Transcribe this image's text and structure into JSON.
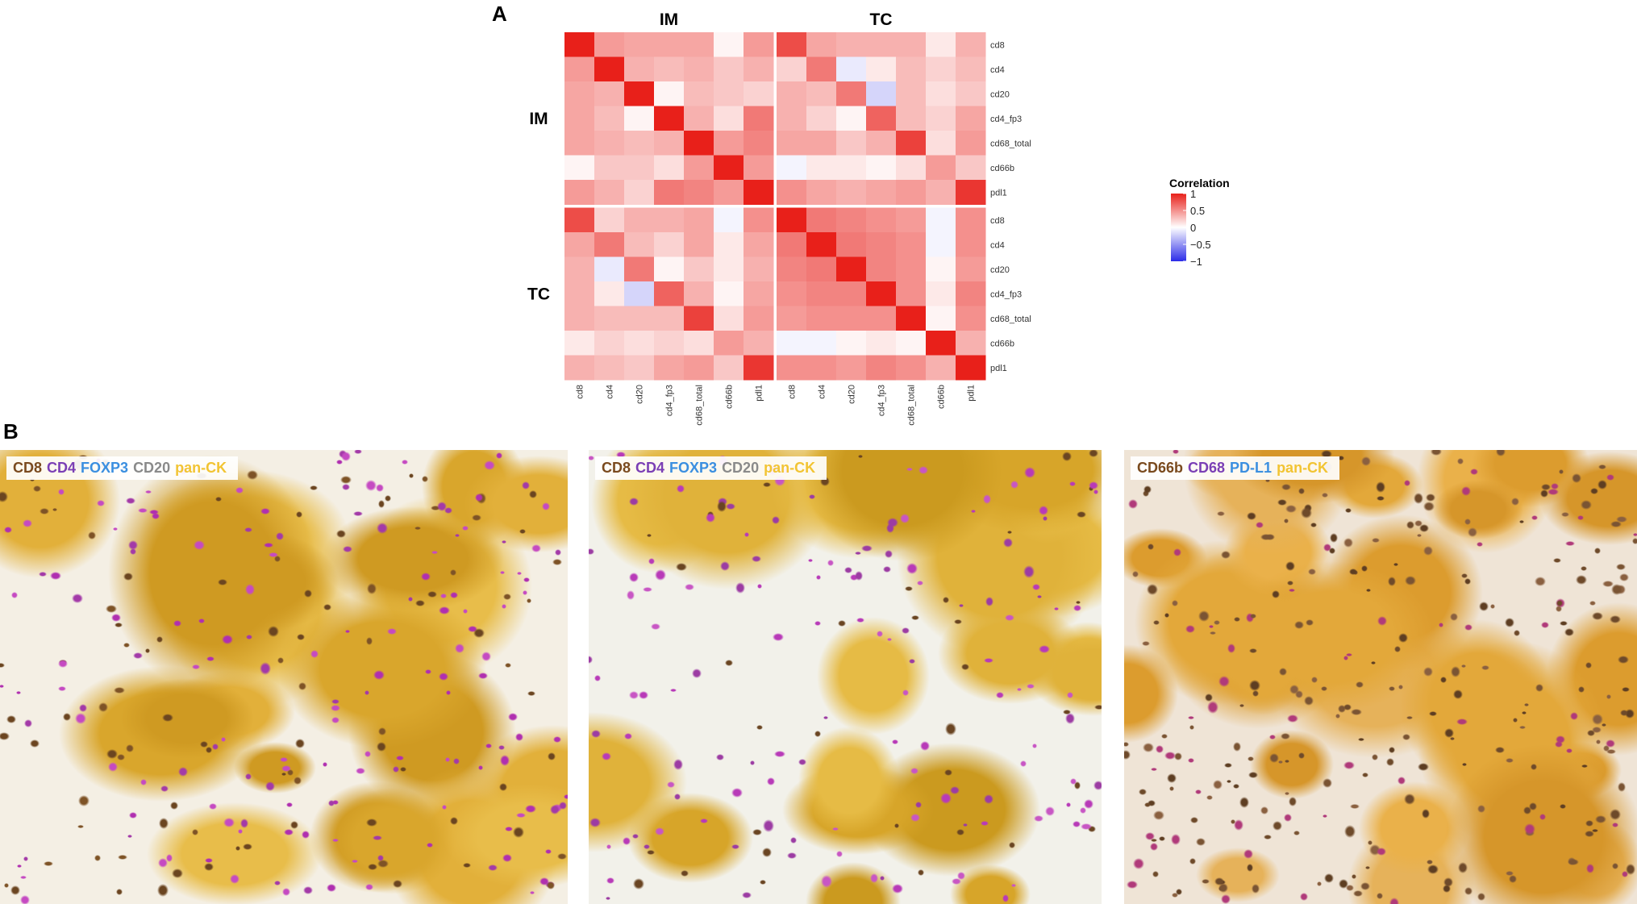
{
  "panels": {
    "a_label": "A",
    "b_label": "B"
  },
  "chart_data": {
    "type": "heatmap",
    "row_groups": [
      "IM",
      "TC"
    ],
    "col_groups": [
      "IM",
      "TC"
    ],
    "markers": [
      "cd8",
      "cd4",
      "cd20",
      "cd4_fp3",
      "cd68_total",
      "cd66b",
      "pdl1"
    ],
    "legend": {
      "title": "Correlation",
      "ticks": [
        1,
        0.5,
        0,
        -0.5,
        -1
      ],
      "tick_labels": [
        "1",
        "0.5",
        "0",
        "−0.5",
        "−1"
      ],
      "colors": {
        "high": "#e8201a",
        "mid": "#ffffff",
        "low": "#2b2be8"
      }
    },
    "values": [
      [
        1.0,
        0.45,
        0.4,
        0.4,
        0.4,
        0.05,
        0.45,
        0.8,
        0.4,
        0.35,
        0.35,
        0.35,
        0.1,
        0.35
      ],
      [
        0.45,
        1.0,
        0.35,
        0.3,
        0.35,
        0.25,
        0.35,
        0.2,
        0.6,
        -0.1,
        0.1,
        0.3,
        0.2,
        0.3
      ],
      [
        0.4,
        0.35,
        1.0,
        0.05,
        0.3,
        0.25,
        0.2,
        0.35,
        0.3,
        0.6,
        -0.2,
        0.3,
        0.15,
        0.25
      ],
      [
        0.4,
        0.3,
        0.05,
        1.0,
        0.35,
        0.15,
        0.6,
        0.35,
        0.2,
        0.05,
        0.7,
        0.3,
        0.2,
        0.4
      ],
      [
        0.4,
        0.35,
        0.3,
        0.35,
        1.0,
        0.45,
        0.55,
        0.4,
        0.4,
        0.25,
        0.35,
        0.85,
        0.15,
        0.45
      ],
      [
        0.05,
        0.25,
        0.25,
        0.15,
        0.45,
        1.0,
        0.45,
        -0.05,
        0.1,
        0.1,
        0.05,
        0.15,
        0.45,
        0.25
      ],
      [
        0.45,
        0.35,
        0.2,
        0.6,
        0.55,
        0.45,
        1.0,
        0.5,
        0.4,
        0.35,
        0.4,
        0.45,
        0.35,
        0.9
      ],
      [
        0.8,
        0.2,
        0.35,
        0.35,
        0.4,
        -0.05,
        0.5,
        1.0,
        0.6,
        0.55,
        0.5,
        0.45,
        -0.05,
        0.5
      ],
      [
        0.4,
        0.6,
        0.3,
        0.2,
        0.4,
        0.1,
        0.4,
        0.6,
        1.0,
        0.6,
        0.55,
        0.5,
        -0.05,
        0.5
      ],
      [
        0.35,
        -0.1,
        0.6,
        0.05,
        0.25,
        0.1,
        0.35,
        0.55,
        0.6,
        1.0,
        0.55,
        0.5,
        0.05,
        0.45
      ],
      [
        0.35,
        0.1,
        -0.2,
        0.7,
        0.35,
        0.05,
        0.4,
        0.5,
        0.55,
        0.55,
        1.0,
        0.5,
        0.1,
        0.55
      ],
      [
        0.35,
        0.3,
        0.3,
        0.3,
        0.85,
        0.15,
        0.45,
        0.45,
        0.5,
        0.5,
        0.5,
        1.0,
        0.05,
        0.5
      ],
      [
        0.1,
        0.2,
        0.15,
        0.2,
        0.15,
        0.45,
        0.35,
        -0.05,
        -0.05,
        0.05,
        0.1,
        0.05,
        1.0,
        0.35
      ],
      [
        0.35,
        0.3,
        0.25,
        0.4,
        0.45,
        0.25,
        0.9,
        0.5,
        0.5,
        0.45,
        0.55,
        0.5,
        0.35,
        1.0
      ]
    ]
  },
  "images": [
    {
      "legend": [
        {
          "text": "CD8",
          "color": "#7a4a1e"
        },
        {
          "text": "CD4",
          "color": "#7b3fb5"
        },
        {
          "text": "FOXP3",
          "color": "#3b8fe0"
        },
        {
          "text": "CD20",
          "color": "#8a8a8a"
        },
        {
          "text": "pan-CK",
          "color": "#f2c433"
        }
      ]
    },
    {
      "legend": [
        {
          "text": "CD8",
          "color": "#7a4a1e"
        },
        {
          "text": "CD4",
          "color": "#7b3fb5"
        },
        {
          "text": "FOXP3",
          "color": "#3b8fe0"
        },
        {
          "text": "CD20",
          "color": "#8a8a8a"
        },
        {
          "text": "pan-CK",
          "color": "#f2c433"
        }
      ]
    },
    {
      "legend": [
        {
          "text": "CD66b",
          "color": "#7a4a1e"
        },
        {
          "text": "CD68",
          "color": "#7b3fb5"
        },
        {
          "text": "PD-L1",
          "color": "#3b8fe0"
        },
        {
          "text": "pan-CK",
          "color": "#f2c433"
        }
      ]
    }
  ]
}
